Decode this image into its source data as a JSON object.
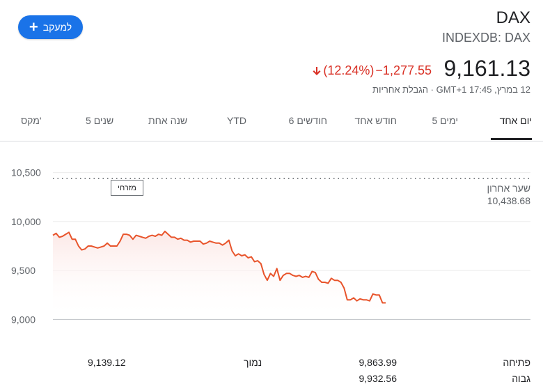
{
  "header": {
    "follow_label": "למעקב",
    "ticker": "DAX",
    "exchange": "INDEXDB: DAX",
    "price": "9,161.13",
    "change": "−1,277.55",
    "change_pct": "(12.24%)",
    "subline": "12 במרץ, 17:45 GMT+1 · הגבלת אחריות",
    "colors": {
      "accent": "#1a73e8",
      "negative": "#d93025"
    }
  },
  "tabs": [
    "יום אחד",
    "5 ימים",
    "חודש אחד",
    "6 חודשים",
    "YTD",
    "שנה אחת",
    "5 שנים",
    "מקס'"
  ],
  "chart": {
    "tooltip": "מזרחי",
    "prev_close_label": "שער אחרון",
    "prev_close_value": "10,438.68"
  },
  "chart_data": {
    "type": "line",
    "yticks": [
      "10,500",
      "10,000",
      "9,500",
      "9,000"
    ],
    "ytick_values": [
      10500,
      10000,
      9500,
      9000
    ],
    "ylim": [
      8860,
      10640
    ],
    "baseline": 10438.68,
    "values": [
      9860,
      9880,
      9840,
      9850,
      9870,
      9890,
      9820,
      9820,
      9750,
      9710,
      9720,
      9750,
      9750,
      9740,
      9730,
      9740,
      9750,
      9780,
      9750,
      9750,
      9750,
      9800,
      9870,
      9870,
      9860,
      9820,
      9860,
      9850,
      9840,
      9830,
      9850,
      9860,
      9850,
      9870,
      9860,
      9900,
      9870,
      9840,
      9840,
      9820,
      9830,
      9810,
      9810,
      9790,
      9800,
      9800,
      9800,
      9770,
      9780,
      9800,
      9790,
      9780,
      9780,
      9760,
      9780,
      9810,
      9700,
      9650,
      9670,
      9650,
      9660,
      9630,
      9640,
      9590,
      9600,
      9570,
      9460,
      9400,
      9470,
      9440,
      9520,
      9400,
      9450,
      9470,
      9470,
      9450,
      9440,
      9450,
      9430,
      9440,
      9430,
      9490,
      9480,
      9410,
      9380,
      9380,
      9370,
      9420,
      9400,
      9400,
      9380,
      9320,
      9200,
      9200,
      9220,
      9190,
      9210,
      9200,
      9200,
      9190,
      9260,
      9250,
      9250,
      9170,
      9170
    ]
  },
  "stats": {
    "open_label": "פתיחה",
    "open_value": "9,863.99",
    "high_label": "גבוה",
    "high_value": "9,932.56",
    "low_label": "נמוך",
    "low_value": "9,139.12"
  }
}
